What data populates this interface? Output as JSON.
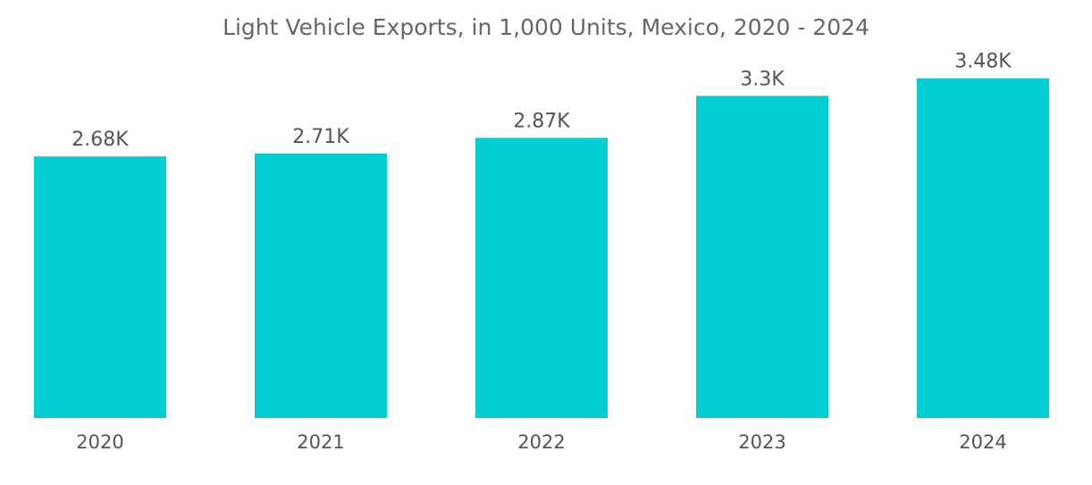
{
  "chart_data": {
    "type": "bar",
    "title": "Light Vehicle Exports, in 1,000 Units, Mexico, 2020 - 2024",
    "xlabel": "",
    "ylabel": "",
    "categories": [
      "2020",
      "2021",
      "2022",
      "2023",
      "2024"
    ],
    "values": [
      2680,
      2710,
      2870,
      3300,
      3480
    ],
    "value_labels": [
      "2.68K",
      "2.71K",
      "2.87K",
      "3.3K",
      "3.48K"
    ],
    "ylim": [
      0,
      3550
    ],
    "grid": false,
    "legend": "none",
    "bar_color": "#00CED1"
  }
}
